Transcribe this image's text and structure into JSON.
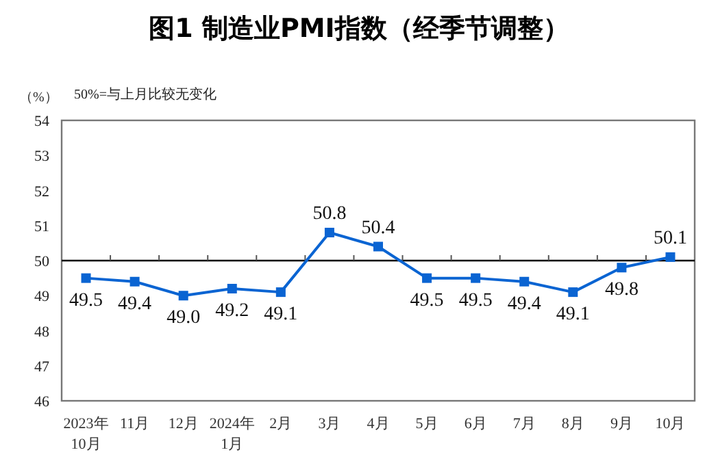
{
  "chart_data": {
    "type": "line",
    "title": "图1  制造业PMI指数（经季节调整）",
    "ylabel": "（%）",
    "annotations": [
      "50%=与上月比较无变化"
    ],
    "categories": [
      "2023年\n10月",
      "11月",
      "12月",
      "2024年\n1月",
      "2月",
      "3月",
      "4月",
      "5月",
      "6月",
      "7月",
      "8月",
      "9月",
      "10月"
    ],
    "series": [
      {
        "color": "#0a64d2",
        "values": [
          49.5,
          49.4,
          49.0,
          49.2,
          49.1,
          50.8,
          50.4,
          49.5,
          49.5,
          49.4,
          49.1,
          49.8,
          50.1
        ],
        "value_labels": [
          "49.5",
          "49.4",
          "49.0",
          "49.2",
          "49.1",
          "50.8",
          "50.4",
          "49.5",
          "49.5",
          "49.4",
          "49.1",
          "49.8",
          "50.1"
        ]
      }
    ],
    "ylim": [
      46,
      54
    ],
    "yticks": [
      46,
      47,
      48,
      49,
      50,
      51,
      52,
      53,
      54
    ],
    "ref_lines": [
      {
        "axis": "y",
        "value": 50,
        "label": null,
        "color": "#000000"
      }
    ],
    "marker": "square",
    "line_style": "solid",
    "grid": false
  }
}
